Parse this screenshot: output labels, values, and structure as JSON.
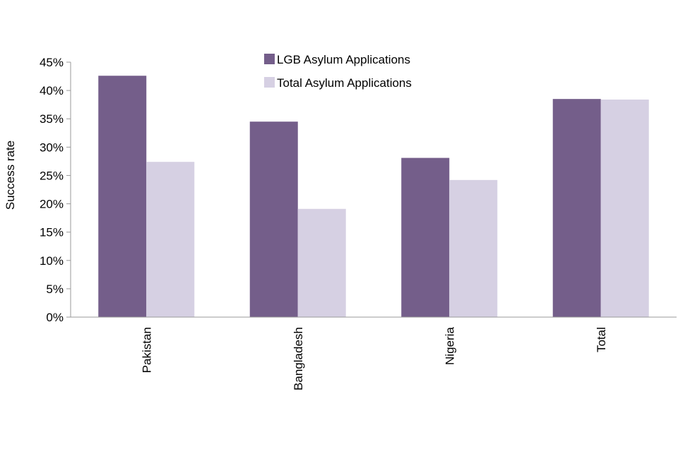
{
  "chart_data": {
    "type": "bar",
    "categories": [
      "Pakistan",
      "Bangladesh",
      "Nigeria",
      "Total"
    ],
    "series": [
      {
        "name": "LGB Asylum Applications",
        "values": [
          42.6,
          34.5,
          28.1,
          38.5
        ],
        "color": "#745e8a"
      },
      {
        "name": "Total Asylum Applications",
        "values": [
          27.4,
          19.1,
          24.2,
          38.4
        ],
        "color": "#d6d0e3"
      }
    ],
    "ylabel": "Success rate",
    "xlabel": "",
    "ylim": [
      0,
      45
    ],
    "yticks": [
      "0%",
      "5%",
      "10%",
      "15%",
      "20%",
      "25%",
      "30%",
      "35%",
      "40%",
      "45%"
    ],
    "grid": false,
    "legend_position": "top-center"
  }
}
